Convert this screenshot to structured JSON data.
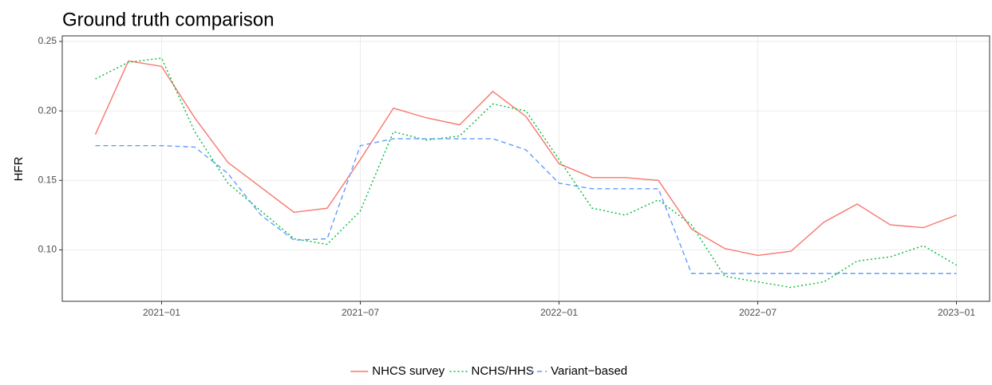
{
  "chart_data": {
    "type": "line",
    "title": "Ground truth comparison",
    "y_label": "HFR",
    "x": [
      "2020-11",
      "2020-12",
      "2021-01",
      "2021-02",
      "2021-03",
      "2021-04",
      "2021-05",
      "2021-06",
      "2021-07",
      "2021-08",
      "2021-09",
      "2021-10",
      "2021-11",
      "2021-12",
      "2022-01",
      "2022-02",
      "2022-03",
      "2022-04",
      "2022-05",
      "2022-06",
      "2022-07",
      "2022-08",
      "2022-09",
      "2022-10",
      "2022-11",
      "2022-12",
      "2023-01"
    ],
    "series": [
      {
        "name": "NHCS survey",
        "color": "#F8766D",
        "dash": "solid",
        "values": [
          0.183,
          0.236,
          0.232,
          0.195,
          0.163,
          0.145,
          0.127,
          0.13,
          0.165,
          0.202,
          0.195,
          0.19,
          0.214,
          0.196,
          0.162,
          0.152,
          0.152,
          0.15,
          0.115,
          0.101,
          0.096,
          0.099,
          0.12,
          0.133,
          0.118,
          0.116,
          0.125
        ]
      },
      {
        "name": "NCHS/HHS",
        "color": "#00BA38",
        "dash": "dotted",
        "values": [
          0.223,
          0.235,
          0.238,
          0.185,
          0.148,
          0.128,
          0.108,
          0.104,
          0.128,
          0.185,
          0.179,
          0.182,
          0.205,
          0.2,
          0.165,
          0.13,
          0.125,
          0.136,
          0.118,
          0.081,
          0.077,
          0.073,
          0.077,
          0.092,
          0.095,
          0.103,
          0.089
        ]
      },
      {
        "name": "Variant−based",
        "color": "#619CFF",
        "dash": "dashed",
        "values": [
          0.175,
          0.175,
          0.175,
          0.174,
          0.155,
          0.125,
          0.107,
          0.108,
          0.175,
          0.18,
          0.18,
          0.18,
          0.18,
          0.172,
          0.148,
          0.144,
          0.144,
          0.144,
          0.083,
          0.083,
          0.083,
          0.083,
          0.083,
          0.083,
          0.083,
          0.083,
          0.083
        ]
      }
    ],
    "xlim": [
      "2020-10",
      "2023-02"
    ],
    "xticks": [
      {
        "value": "2021-01",
        "label": "2021−01"
      },
      {
        "value": "2021-07",
        "label": "2021−07"
      },
      {
        "value": "2022-01",
        "label": "2022−01"
      },
      {
        "value": "2022-07",
        "label": "2022−07"
      },
      {
        "value": "2023-01",
        "label": "2023−01"
      }
    ],
    "ylim": [
      0.063,
      0.254
    ],
    "yticks": [
      {
        "value": 0.1,
        "label": "0.10"
      },
      0.15,
      {
        "value": 0.2,
        "label": "0.20"
      },
      0.25
    ],
    "grid": true,
    "legend": "bottom"
  }
}
